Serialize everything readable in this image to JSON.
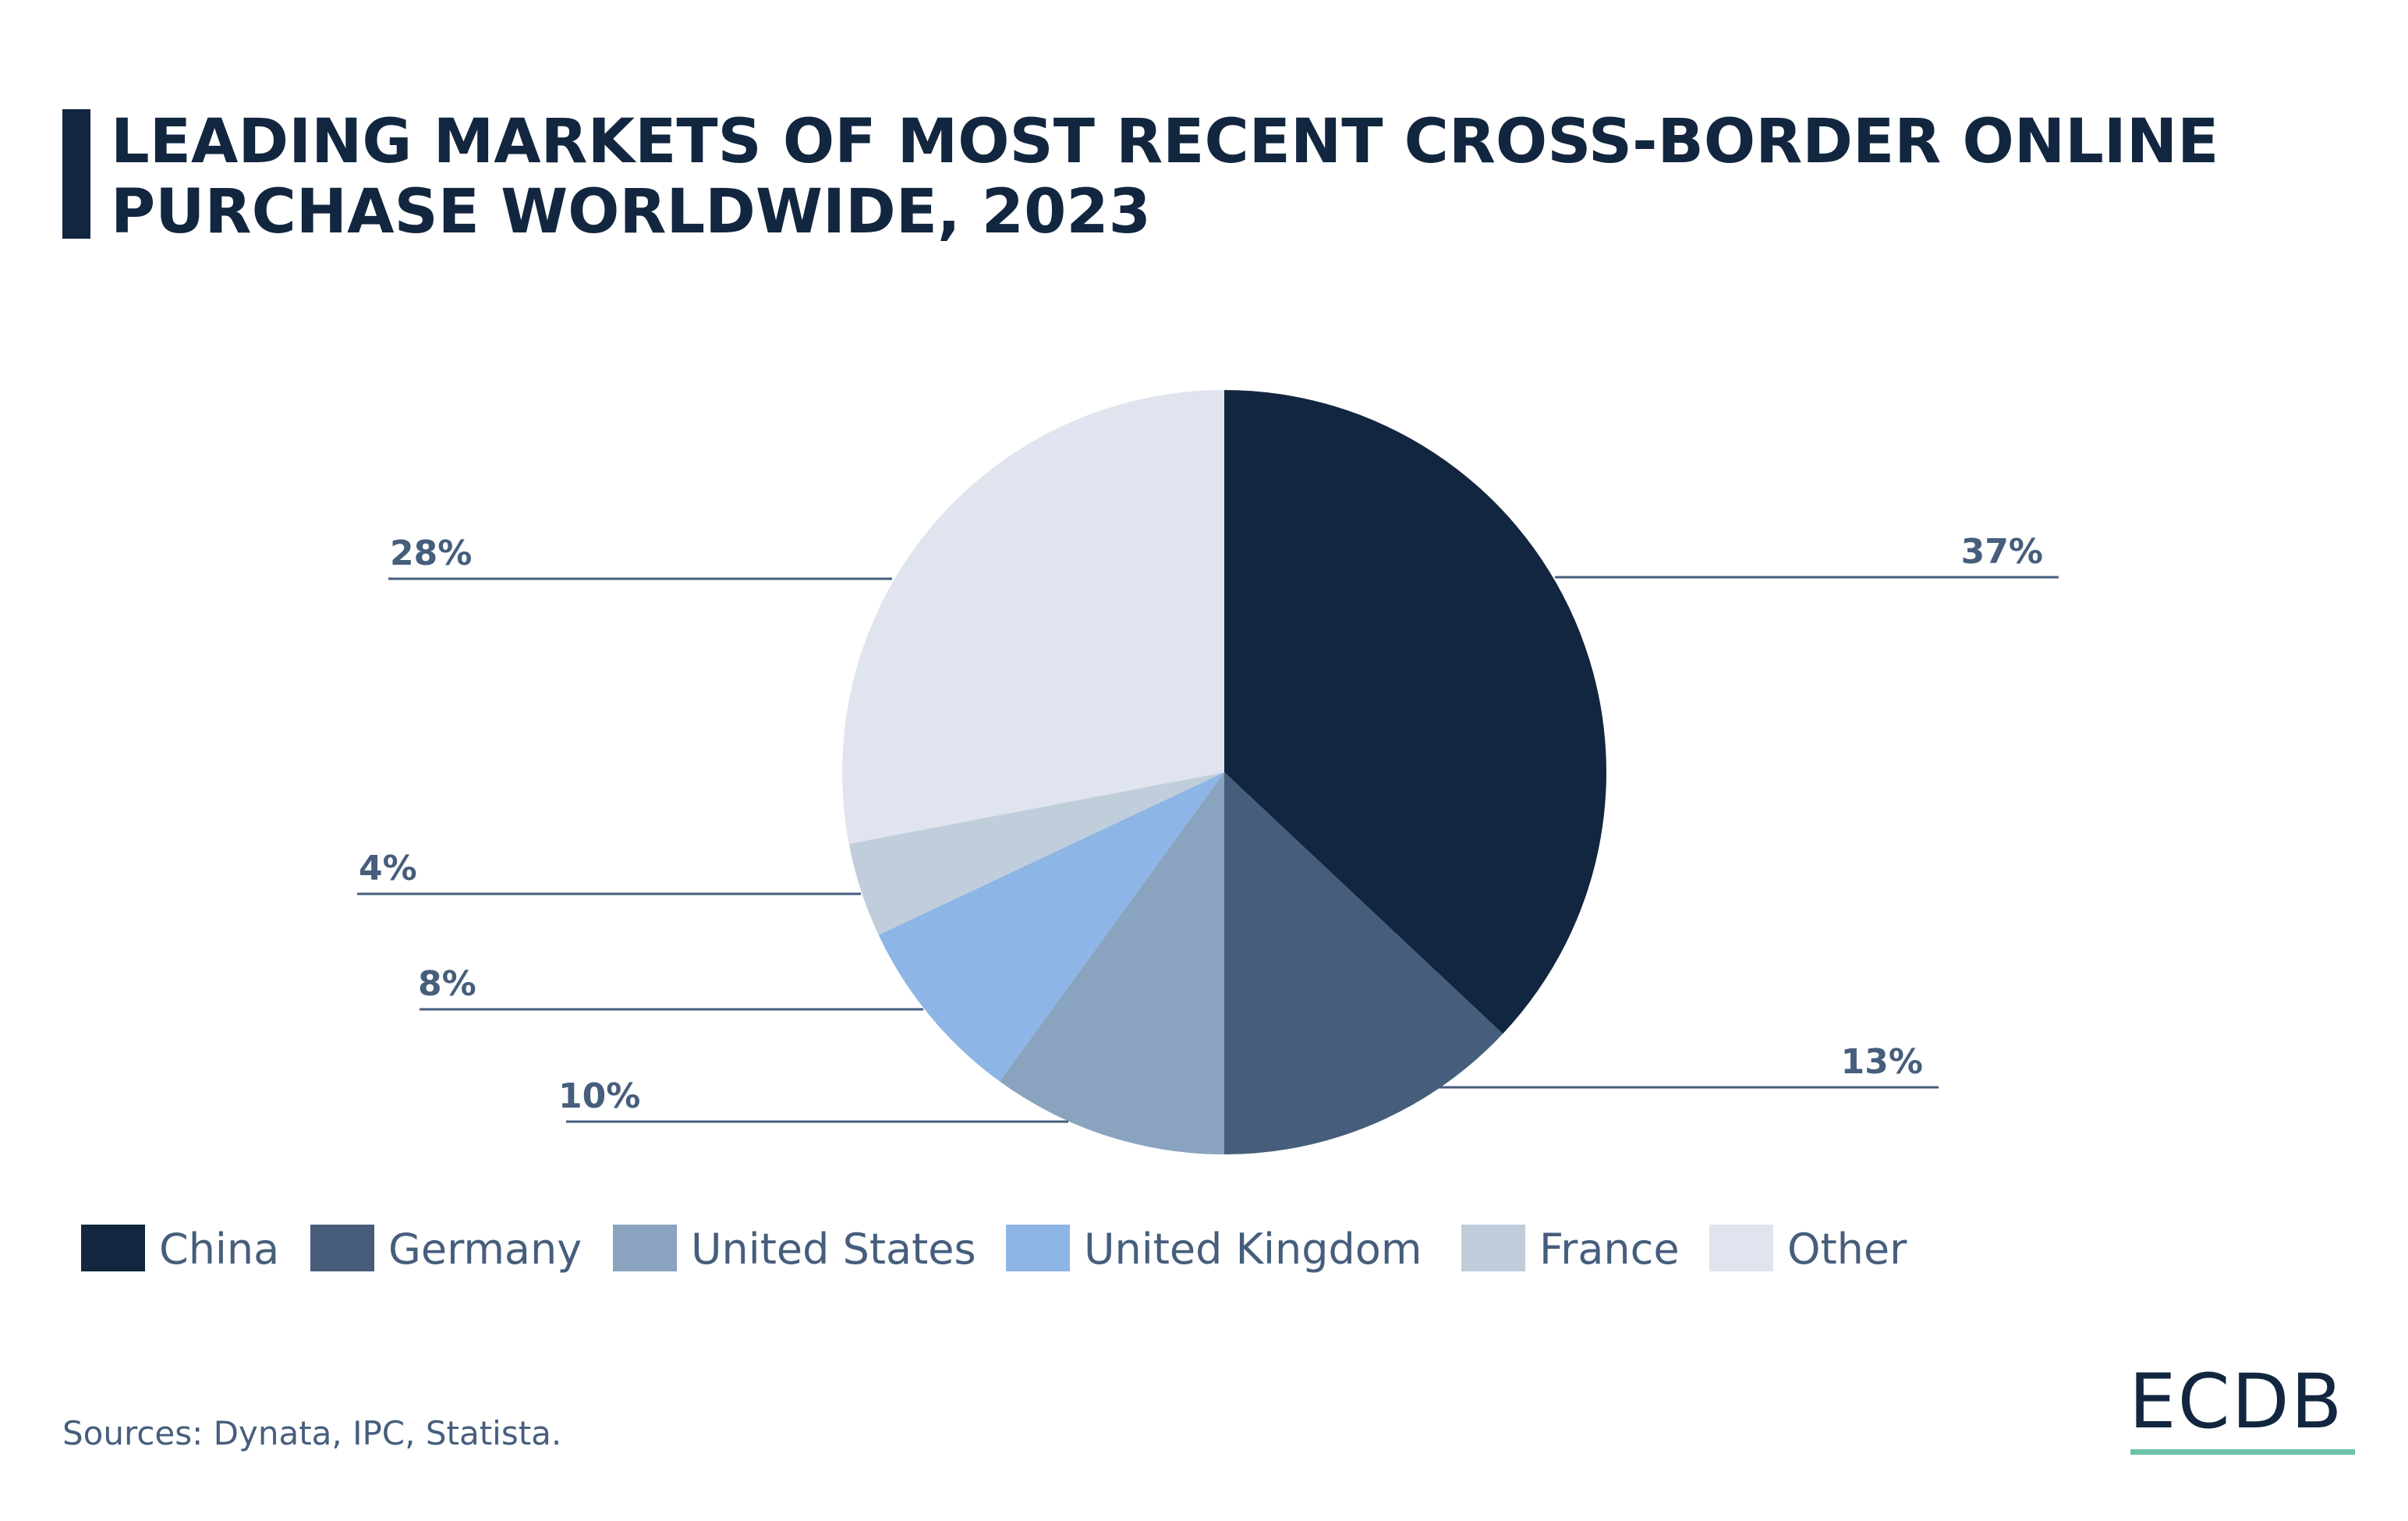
{
  "chart_data": {
    "type": "pie",
    "title": "LEADING MARKETS OF MOST RECENT CROSS-BORDER ONLINE PURCHASE WORLDWIDE, 2023",
    "title_lines": [
      "LEADING MARKETS OF MOST RECENT CROSS-BORDER ONLINE",
      "PURCHASE WORLDWIDE, 2023"
    ],
    "categories": [
      "China",
      "Germany",
      "United States",
      "United Kingdom",
      "France",
      "Other"
    ],
    "values": [
      37,
      13,
      10,
      8,
      4,
      28
    ],
    "labels": [
      "37%",
      "13%",
      "10%",
      "8%",
      "4%",
      "28%"
    ],
    "unit": "%",
    "colors": [
      "#12263f",
      "#465e7c",
      "#8aa3be",
      "#8db5e5",
      "#c0cedb",
      "#dfe4ee"
    ],
    "legend_position": "bottom-left",
    "start_angle": "top, clockwise"
  },
  "footer": {
    "sources": "Sources: Dynata, IPC, Statista."
  },
  "logo": {
    "text": "ECDB",
    "underline_color": "#6cc3a9"
  }
}
